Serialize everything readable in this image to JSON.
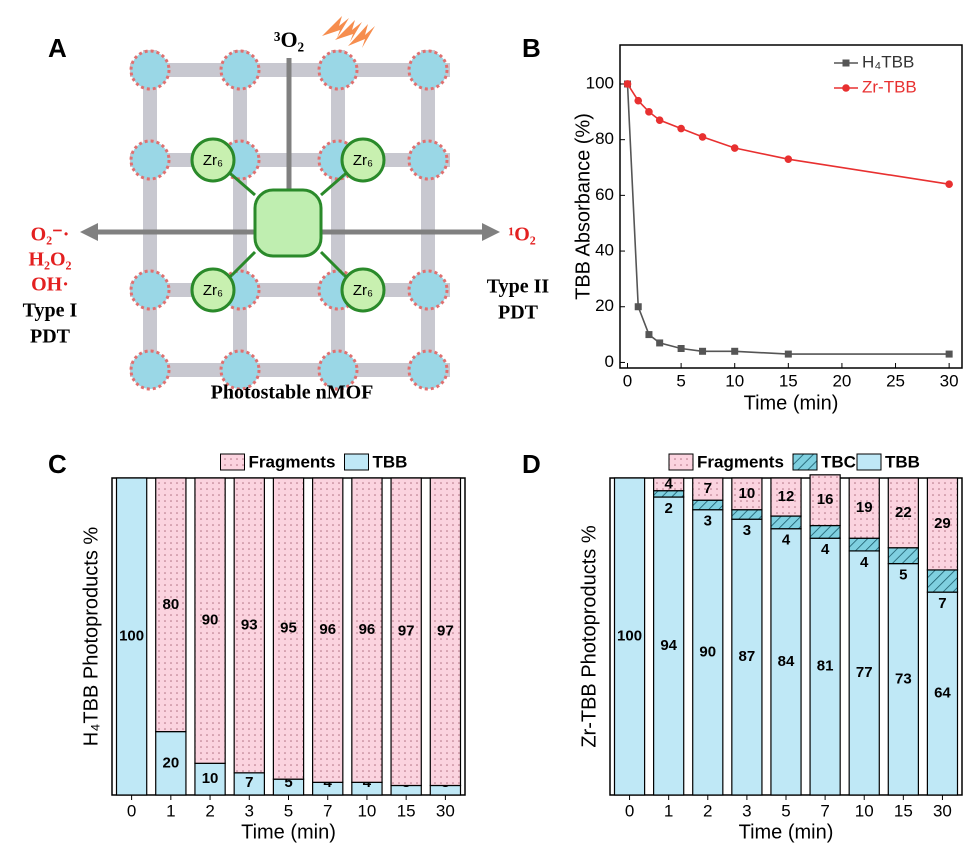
{
  "panel_labels": [
    "A",
    "B",
    "C",
    "D"
  ],
  "diagram": {
    "top_label": "³O₂",
    "left_labels": [
      "O₂⁻·",
      "H₂O₂",
      "OH·",
      "Type I",
      "PDT"
    ],
    "right_labels": [
      "¹O₂",
      "Type II",
      "PDT"
    ],
    "node_labels": [
      "Zr₆",
      "Zr₆",
      "Zr₆",
      "Zr₆"
    ],
    "caption": "Photostable nMOF"
  },
  "chart_data": [
    {
      "type": "line",
      "x_label": "Time (min)",
      "y_label": "TBB Absorbance (%)",
      "x": [
        0,
        1,
        2,
        3,
        5,
        7,
        10,
        15,
        30
      ],
      "series": [
        {
          "name": "H₄TBB",
          "color": "#555555",
          "marker": "square",
          "values": [
            100,
            20,
            10,
            7,
            5,
            4,
            4,
            3,
            3
          ]
        },
        {
          "name": "Zr-TBB",
          "color": "#e83030",
          "marker": "circle",
          "values": [
            100,
            94,
            90,
            87,
            84,
            81,
            77,
            73,
            64
          ]
        }
      ],
      "xlim": [
        -0.7,
        31.2
      ],
      "xticks": [
        0,
        5,
        10,
        15,
        20,
        25,
        30
      ],
      "ylim": [
        -2,
        114
      ],
      "yticks": [
        0,
        20,
        40,
        60,
        80,
        100
      ],
      "legend": "top-right"
    },
    {
      "type": "bar",
      "stacked": true,
      "x_label": "Time (min)",
      "y_label": "H₄TBB Photoproducts %",
      "categories": [
        "0",
        "1",
        "2",
        "3",
        "5",
        "7",
        "10",
        "15",
        "30"
      ],
      "series": [
        {
          "name": "Fragments",
          "color": "#fbd3df",
          "pattern": "dots",
          "values": [
            null,
            80,
            90,
            93,
            95,
            96,
            96,
            97,
            97
          ]
        },
        {
          "name": "TBB",
          "color": "#bfe8f6",
          "values": [
            100,
            20,
            10,
            7,
            5,
            4,
            4,
            3,
            3
          ]
        }
      ],
      "ylim": [
        0,
        100
      ],
      "legend": "top"
    },
    {
      "type": "bar",
      "stacked": true,
      "x_label": "Time (min)",
      "y_label": "Zr-TBB Photoproducts %",
      "categories": [
        "0",
        "1",
        "2",
        "3",
        "5",
        "7",
        "10",
        "15",
        "30"
      ],
      "series": [
        {
          "name": "Fragments",
          "color": "#fbd3df",
          "pattern": "dots",
          "values": [
            null,
            4,
            7,
            10,
            12,
            16,
            19,
            22,
            29
          ]
        },
        {
          "name": "TBC",
          "color": "#7fd0e0",
          "pattern": "hatch",
          "values": [
            null,
            2,
            3,
            3,
            4,
            4,
            4,
            5,
            7
          ]
        },
        {
          "name": "TBB",
          "color": "#bfe8f6",
          "values": [
            100,
            94,
            90,
            87,
            84,
            81,
            77,
            73,
            64
          ]
        }
      ],
      "ylim": [
        0,
        100
      ],
      "legend": "top"
    }
  ]
}
